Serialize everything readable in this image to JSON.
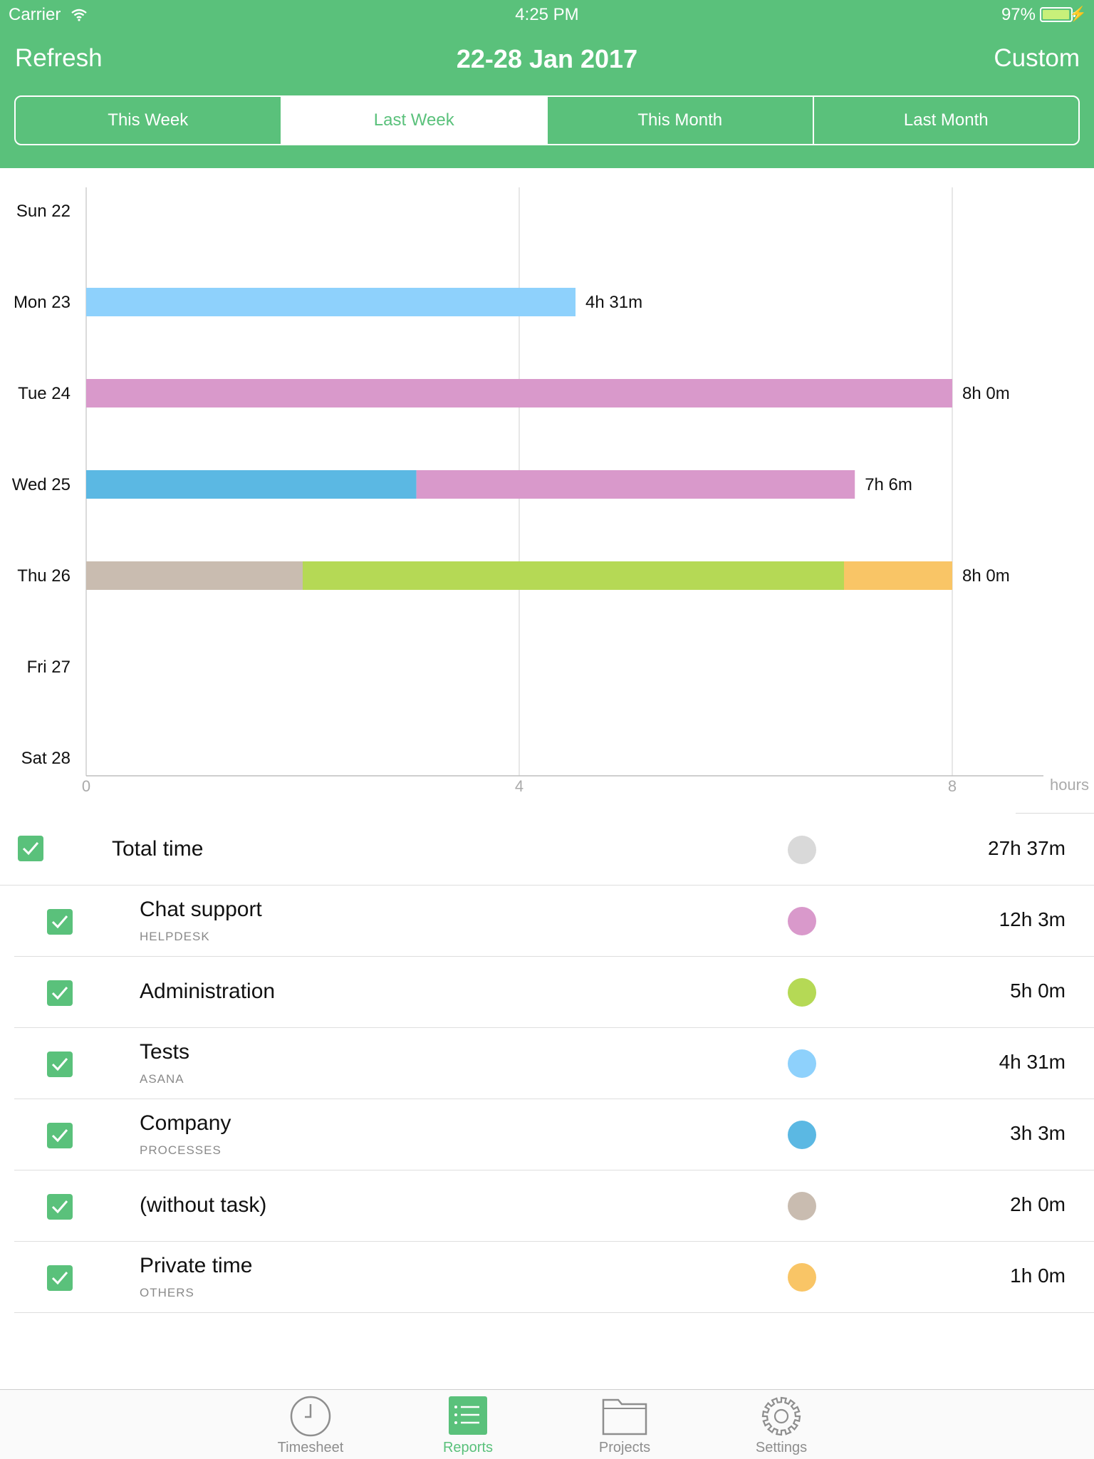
{
  "status_bar": {
    "carrier": "Carrier",
    "time": "4:25 PM",
    "battery": "97%"
  },
  "nav": {
    "left_button": "Refresh",
    "title": "22-28 Jan 2017",
    "right_button": "Custom"
  },
  "segments": [
    {
      "label": "This Week",
      "active": false
    },
    {
      "label": "Last Week",
      "active": true
    },
    {
      "label": "This Month",
      "active": false
    },
    {
      "label": "Last Month",
      "active": false
    }
  ],
  "chart_data": {
    "type": "bar",
    "orientation": "horizontal",
    "stacked": true,
    "categories": [
      "Sun 22",
      "Mon 23",
      "Tue 24",
      "Wed 25",
      "Thu 26",
      "Fri 27",
      "Sat 28"
    ],
    "xlabel": "hours",
    "xlim": [
      0,
      8
    ],
    "xticks": [
      0,
      4,
      8
    ],
    "series": [
      {
        "name": "Chat support",
        "color": "#d999cb",
        "values": [
          0,
          0,
          8,
          4.05,
          0,
          0,
          0
        ]
      },
      {
        "name": "Administration",
        "color": "#b5d955",
        "values": [
          0,
          0,
          0,
          0,
          5,
          0,
          0
        ]
      },
      {
        "name": "Tests",
        "color": "#8ed1fc",
        "values": [
          0,
          4.52,
          0,
          0,
          0,
          0,
          0
        ]
      },
      {
        "name": "Company",
        "color": "#5bb8e3",
        "values": [
          0,
          0,
          0,
          3.05,
          0,
          0,
          0
        ]
      },
      {
        "name": "(without task)",
        "color": "#c9bcb0",
        "values": [
          0,
          0,
          0,
          0,
          2,
          0,
          0
        ]
      },
      {
        "name": "Private time",
        "color": "#f9c566",
        "values": [
          0,
          0,
          0,
          0,
          1,
          0,
          0
        ]
      }
    ],
    "data_labels": [
      "",
      "4h 31m",
      "8h 0m",
      "7h 6m",
      "8h 0m",
      "",
      ""
    ],
    "grid": true
  },
  "summary": {
    "total": {
      "label": "Total time",
      "value": "27h 37m",
      "color": "#d9d9d9",
      "checked": true
    },
    "items": [
      {
        "name": "Chat support",
        "project": "HELPDESK",
        "value": "12h 3m",
        "color": "#d999cb",
        "checked": true
      },
      {
        "name": "Administration",
        "project": "",
        "value": "5h 0m",
        "color": "#b5d955",
        "checked": true
      },
      {
        "name": "Tests",
        "project": "ASANA",
        "value": "4h 31m",
        "color": "#8ed1fc",
        "checked": true
      },
      {
        "name": "Company",
        "project": "PROCESSES",
        "value": "3h 3m",
        "color": "#5bb8e3",
        "checked": true
      },
      {
        "name": "(without task)",
        "project": "",
        "value": "2h 0m",
        "color": "#c9bcb0",
        "checked": true
      },
      {
        "name": "Private time",
        "project": "OTHERS",
        "value": "1h 0m",
        "color": "#f9c566",
        "checked": true
      }
    ]
  },
  "tabbar": [
    {
      "label": "Timesheet",
      "icon": "clock-icon",
      "active": false
    },
    {
      "label": "Reports",
      "icon": "list-icon",
      "active": true
    },
    {
      "label": "Projects",
      "icon": "folder-icon",
      "active": false
    },
    {
      "label": "Settings",
      "icon": "gear-icon",
      "active": false
    }
  ],
  "colors": {
    "brand_green": "#5ac17b"
  }
}
